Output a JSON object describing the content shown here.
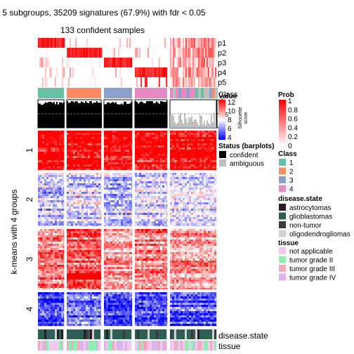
{
  "title": "5 subgroups, 35209 signatures (67.9%) with fdr < 0.05",
  "subtitle": "133 confident samples",
  "y_axis_label": "k-means with 4 groups",
  "row_groups": [
    "1",
    "2",
    "3",
    "4"
  ],
  "prob_rows": [
    "p1",
    "p2",
    "p3",
    "p4",
    "p5"
  ],
  "class_row_label": "Class",
  "silhouette": {
    "label": "Silhouette score",
    "label_line1": "Silhouette",
    "label_line2": "score",
    "ticks": [
      "1",
      "0.5",
      "0"
    ],
    "values_by_group": [
      0.92,
      0.97,
      0.93,
      0.96,
      0.35
    ]
  },
  "bottom_annotations": [
    "disease.state",
    "tissue"
  ],
  "legends": {
    "value": {
      "title": "Value",
      "ticks": [
        "12",
        "10",
        "8",
        "6",
        "4"
      ],
      "colors": [
        "#ff0000",
        "#ffffff",
        "#0000ff"
      ]
    },
    "status": {
      "title": "Status (barplots)",
      "items": [
        {
          "label": "confident",
          "color": "#000000"
        },
        {
          "label": "ambiguous",
          "color": "#bebebe"
        }
      ]
    },
    "prob": {
      "title": "Prob",
      "ticks": [
        "1",
        "0.8",
        "0.6",
        "0.4",
        "0.2",
        "0"
      ],
      "colors": [
        "#ff0000",
        "#ffffff"
      ]
    },
    "class": {
      "title": "Class",
      "items": [
        {
          "label": "1",
          "color": "#66c2a5"
        },
        {
          "label": "2",
          "color": "#fc8d62"
        },
        {
          "label": "3",
          "color": "#8da0cb"
        },
        {
          "label": "4",
          "color": "#e78ac3"
        }
      ]
    },
    "disease_state": {
      "title": "disease.state",
      "items": [
        {
          "label": "astrocytomas",
          "color": "#2e1b28"
        },
        {
          "label": "glioblastomas",
          "color": "#2f5e54"
        },
        {
          "label": "non-tumor",
          "color": "#3a3a3a"
        },
        {
          "label": "oligodendrogliomas",
          "color": "#cfd3d0"
        }
      ]
    },
    "tissue": {
      "title": "tissue",
      "items": [
        {
          "label": "not applicable",
          "color": "#f0c8f0"
        },
        {
          "label": "tumor grade II",
          "color": "#8ef0b0"
        },
        {
          "label": "tumor grade III",
          "color": "#f4a8c0"
        },
        {
          "label": "tumor grade IV",
          "color": "#dcb4ec"
        }
      ]
    }
  },
  "chart_data": {
    "type": "heatmap",
    "title": "5 subgroups, 35209 signatures (67.9%) with fdr < 0.05",
    "subtitle": "133 confident samples",
    "ylabel": "k-means with 4 groups",
    "column_groups": [
      {
        "class": "1",
        "color": "#66c2a5"
      },
      {
        "class": "2",
        "color": "#fc8d62"
      },
      {
        "class": "3",
        "color": "#8da0cb"
      },
      {
        "class": "4",
        "color": "#e78ac3"
      },
      {
        "class": "mixed",
        "color": "#bebebe"
      }
    ],
    "row_groups": [
      "1",
      "2",
      "3",
      "4"
    ],
    "row_group_mean_values": [
      [
        12,
        12,
        12,
        12,
        12
      ],
      [
        7,
        7.5,
        7,
        7.5,
        7.5
      ],
      [
        10,
        10.5,
        9.5,
        10,
        9.5
      ],
      [
        5,
        6,
        5,
        5.5,
        5.5
      ]
    ],
    "value_range": [
      4,
      12
    ],
    "prob_range": [
      0,
      1
    ]
  }
}
